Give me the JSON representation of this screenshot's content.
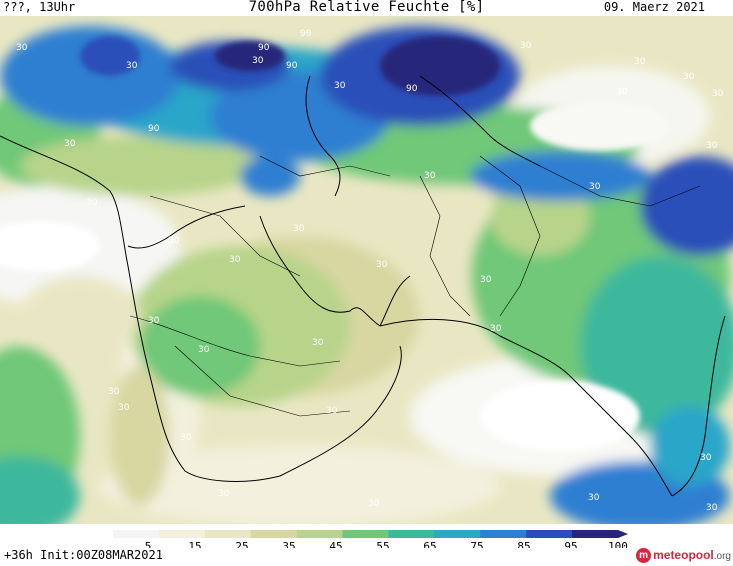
{
  "header": {
    "left": "???, 13Uhr",
    "title": "700hPa Relative Feuchte [%]",
    "date": "09. Maerz 2021"
  },
  "footer": {
    "run_info": "+36h Init:00Z08MAR2021",
    "logo_text": "meteopool",
    "logo_tld": ".org"
  },
  "colorbar": {
    "ticks": [
      "5",
      "15",
      "25",
      "35",
      "45",
      "55",
      "65",
      "75",
      "85",
      "95",
      "100"
    ],
    "colors": [
      "#f4f4f4",
      "#f3f1de",
      "#e9e7c3",
      "#d8d7a2",
      "#b7d48a",
      "#6fc878",
      "#3cb89c",
      "#2ca6c9",
      "#2f7fd1",
      "#2b4fb8",
      "#27257a"
    ]
  },
  "map": {
    "contour_labels": [
      {
        "text": "30"
      },
      {
        "text": "90"
      },
      {
        "text": "99"
      },
      {
        "text": "90"
      },
      {
        "text": "30"
      },
      {
        "text": "90"
      },
      {
        "text": "90"
      },
      {
        "text": "30"
      },
      {
        "text": "30"
      },
      {
        "text": "30"
      },
      {
        "text": "30"
      },
      {
        "text": "30"
      },
      {
        "text": "30"
      },
      {
        "text": "30"
      },
      {
        "text": "30"
      },
      {
        "text": "30"
      },
      {
        "text": "30"
      },
      {
        "text": "30"
      },
      {
        "text": "30"
      },
      {
        "text": "30"
      },
      {
        "text": "30"
      },
      {
        "text": "30"
      },
      {
        "text": "30"
      },
      {
        "text": "30"
      },
      {
        "text": "30"
      },
      {
        "text": "30"
      },
      {
        "text": "30"
      },
      {
        "text": "30"
      },
      {
        "text": "30"
      },
      {
        "text": "30"
      },
      {
        "text": "30"
      },
      {
        "text": "30"
      },
      {
        "text": "30"
      },
      {
        "text": "30"
      },
      {
        "text": "30"
      },
      {
        "text": "30"
      },
      {
        "text": "30"
      },
      {
        "text": "30"
      }
    ]
  }
}
